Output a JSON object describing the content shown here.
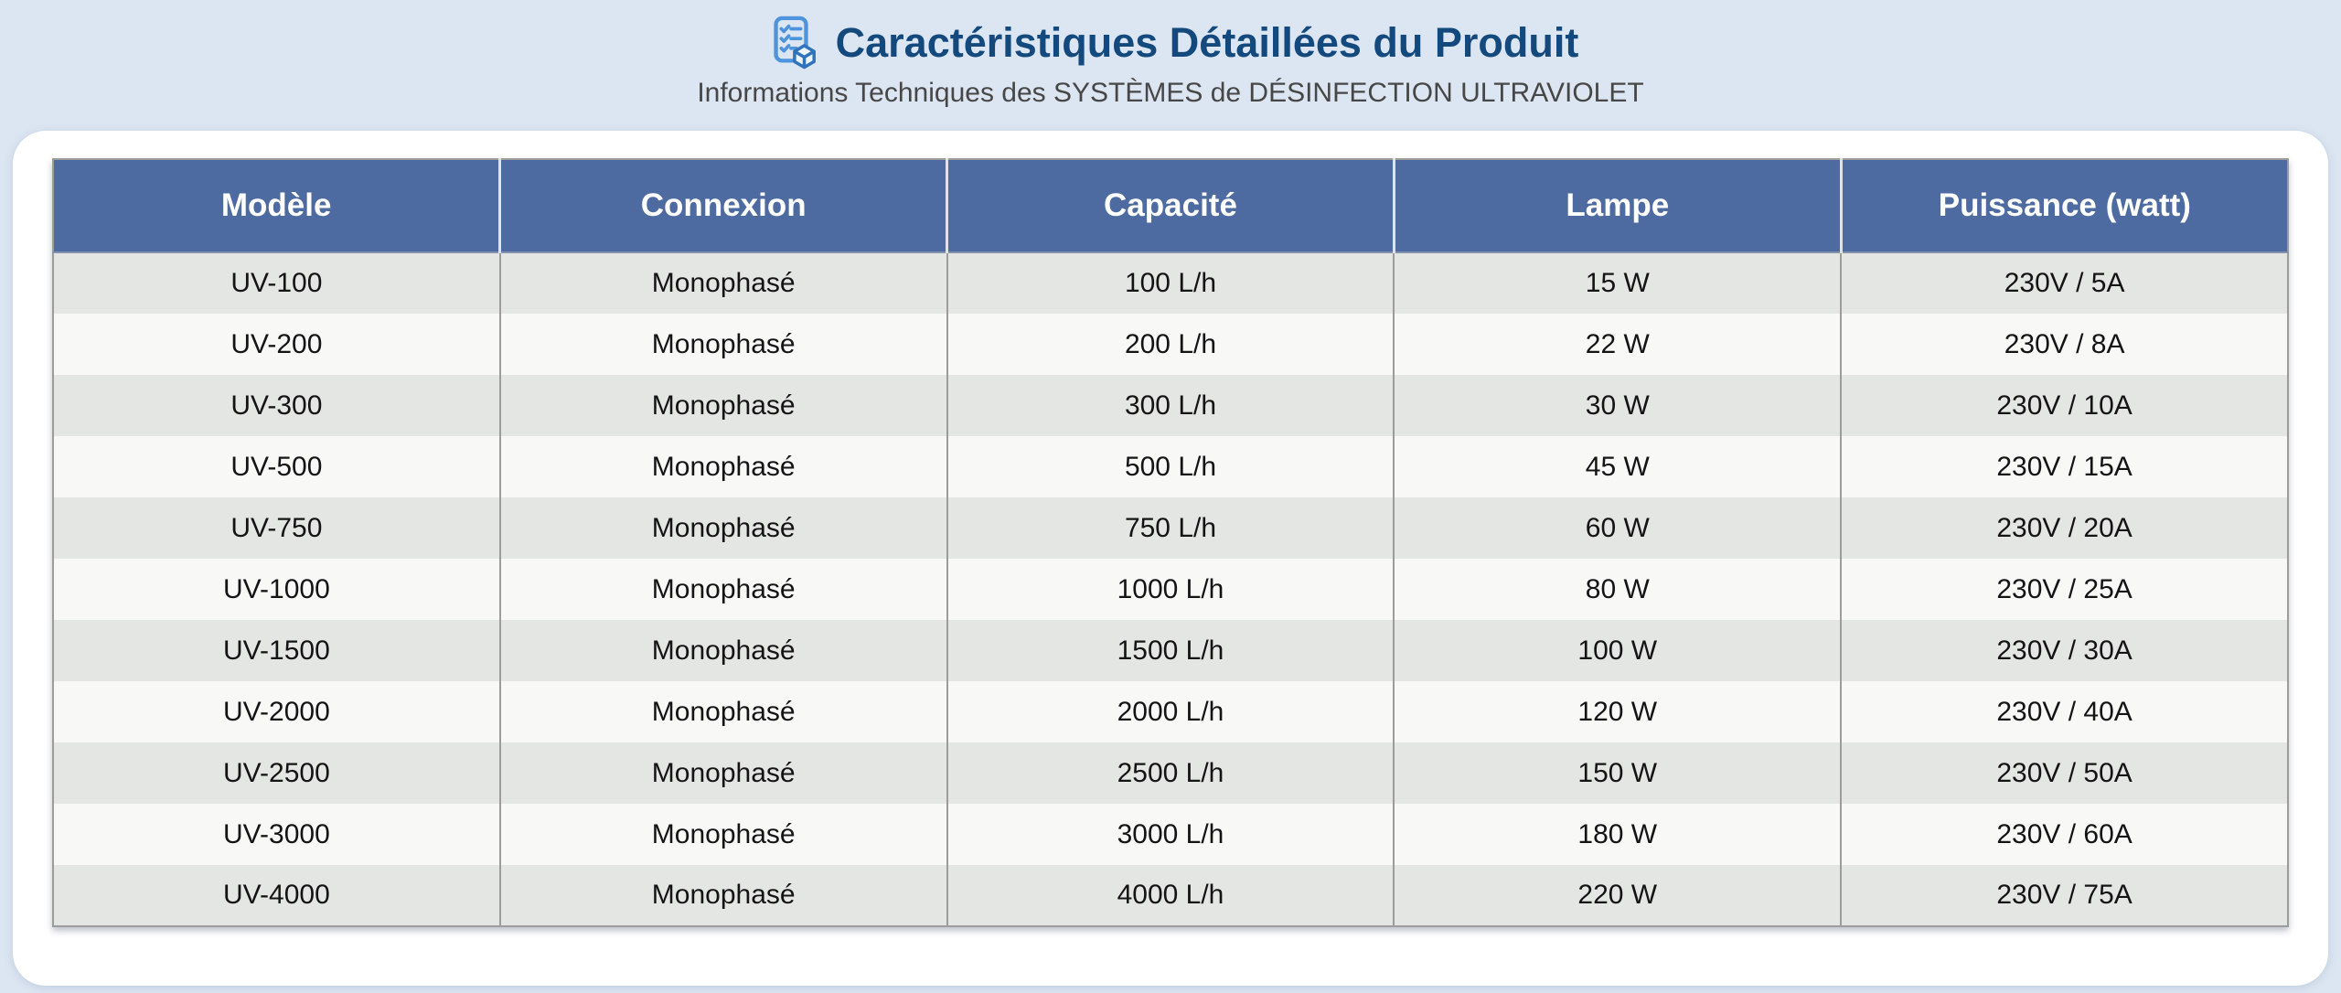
{
  "header": {
    "title": "Caractéristiques Détaillées du Produit",
    "subtitle": "Informations Techniques des SYSTÈMES de DÉSINFECTION ULTRAVIOLET",
    "icon": "clipboard-checklist-cube-icon"
  },
  "chart_data": {
    "type": "table",
    "title": "Caractéristiques Détaillées du Produit",
    "subtitle": "Informations Techniques des SYSTÈMES de DÉSINFECTION ULTRAVIOLET",
    "columns": [
      "Modèle",
      "Connexion",
      "Capacité",
      "Lampe",
      "Puissance (watt)"
    ],
    "rows": [
      [
        "UV-100",
        "Monophasé",
        "100 L/h",
        "15 W",
        "230V / 5A"
      ],
      [
        "UV-200",
        "Monophasé",
        "200 L/h",
        "22 W",
        "230V / 8A"
      ],
      [
        "UV-300",
        "Monophasé",
        "300 L/h",
        "30 W",
        "230V / 10A"
      ],
      [
        "UV-500",
        "Monophasé",
        "500 L/h",
        "45 W",
        "230V / 15A"
      ],
      [
        "UV-750",
        "Monophasé",
        "750 L/h",
        "60 W",
        "230V / 20A"
      ],
      [
        "UV-1000",
        "Monophasé",
        "1000 L/h",
        "80 W",
        "230V / 25A"
      ],
      [
        "UV-1500",
        "Monophasé",
        "1500 L/h",
        "100 W",
        "230V / 30A"
      ],
      [
        "UV-2000",
        "Monophasé",
        "2000 L/h",
        "120 W",
        "230V / 40A"
      ],
      [
        "UV-2500",
        "Monophasé",
        "2500 L/h",
        "150 W",
        "230V / 50A"
      ],
      [
        "UV-3000",
        "Monophasé",
        "3000 L/h",
        "180 W",
        "230V / 60A"
      ],
      [
        "UV-4000",
        "Monophasé",
        "4000 L/h",
        "220 W",
        "230V / 75A"
      ]
    ]
  },
  "colors": {
    "page_background": "#dce6f2",
    "card_background": "#ffffff",
    "table_header_background": "#4e6ba1",
    "table_header_text": "#ffffff",
    "row_stripe_gray": "#e4e6e3",
    "row_stripe_white": "#f8f9f7",
    "grid_line": "#9c9c9c",
    "title_text": "#14497d",
    "subtitle_text": "#474747",
    "icon_blue": "#4e94dd",
    "icon_cube_blue": "#2f73ba"
  }
}
